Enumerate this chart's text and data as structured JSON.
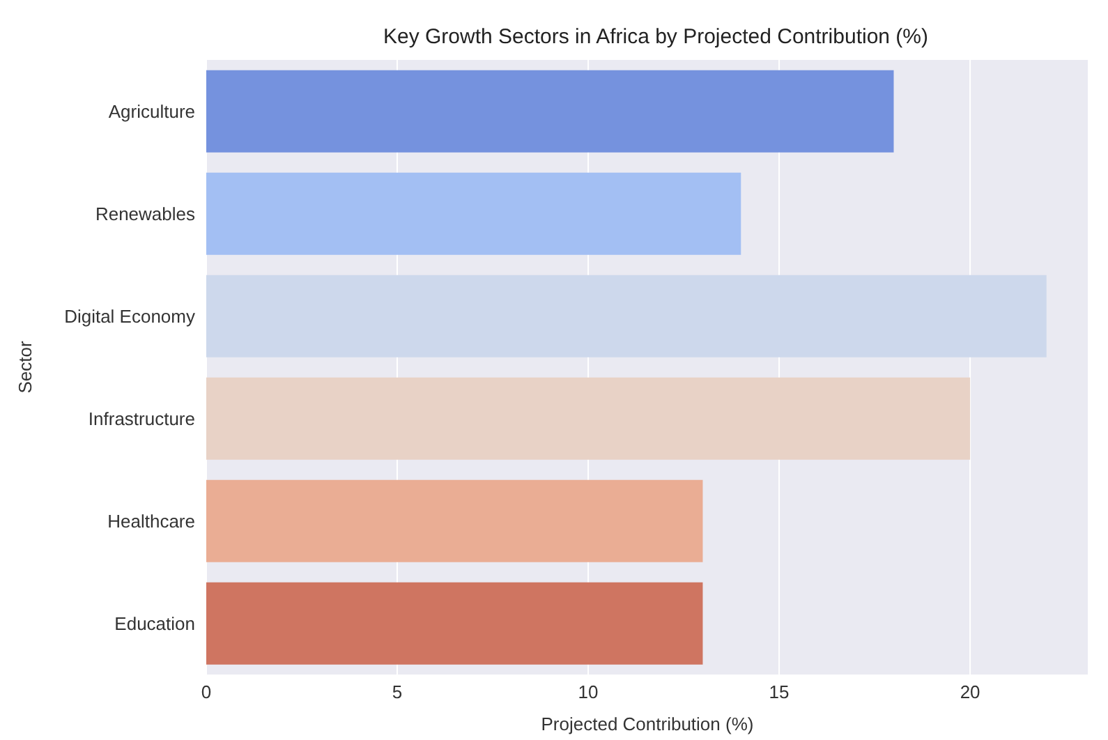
{
  "chart_data": {
    "type": "bar",
    "orientation": "horizontal",
    "title": "Key Growth Sectors in Africa by Projected Contribution (%)",
    "xlabel": "Projected Contribution (%)",
    "ylabel": "Sector",
    "categories": [
      "Agriculture",
      "Renewables",
      "Digital Economy",
      "Infrastructure",
      "Healthcare",
      "Education"
    ],
    "values": [
      18,
      14,
      22,
      20,
      13,
      13
    ],
    "colors": [
      "#7592de",
      "#a3bff3",
      "#cdd8ec",
      "#e8d2c6",
      "#eaad94",
      "#cf7561"
    ],
    "xlim": [
      0,
      23.1
    ],
    "xticks": [
      0,
      5,
      10,
      15,
      20
    ],
    "grid": "x"
  }
}
